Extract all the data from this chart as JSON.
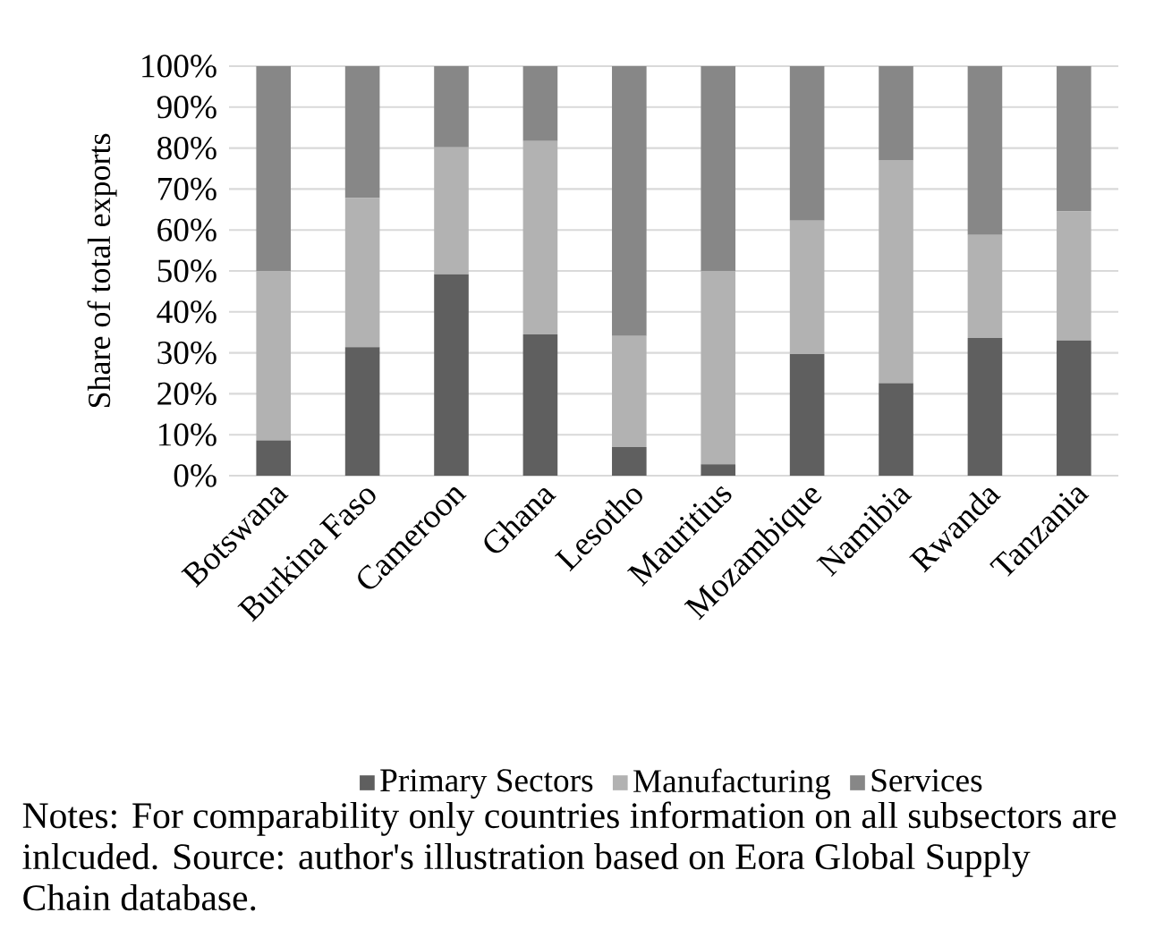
{
  "chart_data": {
    "type": "bar",
    "stacked": true,
    "ylabel": "Share of total exports",
    "categories": [
      "Botswana",
      "Burkina Faso",
      "Cameroon",
      "Ghana",
      "Lesotho",
      "Mauritius",
      "Mozambique",
      "Namibia",
      "Rwanda",
      "Tanzania"
    ],
    "series": [
      {
        "name": "Primary Sectors",
        "color": "#5f5f5f",
        "values": [
          8.6,
          31.4,
          49.2,
          34.5,
          7.0,
          2.8,
          29.7,
          22.6,
          33.6,
          33.0
        ]
      },
      {
        "name": "Manufacturing",
        "color": "#b2b2b2",
        "values": [
          41.4,
          36.4,
          31.0,
          47.2,
          27.1,
          47.1,
          32.6,
          54.5,
          25.2,
          31.5
        ]
      },
      {
        "name": "Services",
        "color": "#878787",
        "values": [
          50.0,
          32.2,
          19.8,
          18.3,
          65.9,
          50.1,
          37.7,
          22.9,
          41.2,
          35.5
        ]
      }
    ],
    "ylim": [
      0,
      100
    ],
    "yticks": [
      {
        "value": 0,
        "label": "0%"
      },
      {
        "value": 10,
        "label": "10%"
      },
      {
        "value": 20,
        "label": "20%"
      },
      {
        "value": 30,
        "label": "30%"
      },
      {
        "value": 40,
        "label": "40%"
      },
      {
        "value": 50,
        "label": "50%"
      },
      {
        "value": 60,
        "label": "60%"
      },
      {
        "value": 70,
        "label": "70%"
      },
      {
        "value": 80,
        "label": "80%"
      },
      {
        "value": 90,
        "label": "90%"
      },
      {
        "value": 100,
        "label": "100%"
      }
    ],
    "grid": "y",
    "legend": "bottom",
    "annotations": [
      "Notes: For comparability only countries information on all subsectors are inlcuded. Source: author's illustration based on Eora Global Supply Chain database."
    ]
  }
}
